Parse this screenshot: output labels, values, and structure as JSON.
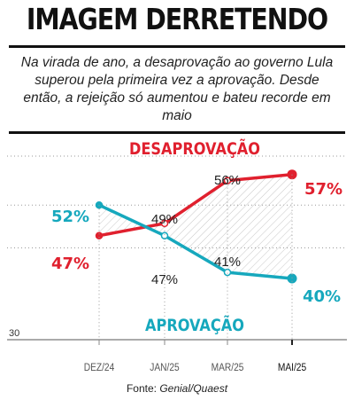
{
  "header": {
    "title": "IMAGEM DERRETENDO",
    "subtitle": "Na virada de ano, a desaprovação ao governo Lula superou pela primeira vez a aprovação. Desde então, a rejeição só aumentou e bateu recorde em maio"
  },
  "source": {
    "label": "Fonte:",
    "name": "Genial/Quaest"
  },
  "chart_data": {
    "type": "line",
    "categories": [
      "DEZ/24",
      "JAN/25",
      "MAR/25",
      "MAI/25"
    ],
    "series": [
      {
        "name": "DESAPROVAÇÃO",
        "values": [
          47,
          49,
          56,
          57
        ],
        "labels": [
          "47%",
          "49%",
          "56%",
          "57%"
        ],
        "color": "#e0202e"
      },
      {
        "name": "APROVAÇÃO",
        "values": [
          52,
          47,
          41,
          40
        ],
        "labels": [
          "52%",
          "47%",
          "41%",
          "40%"
        ],
        "color": "#16a8bd"
      }
    ],
    "y_axis": {
      "min": 30,
      "max": 60,
      "tick_label": "30"
    },
    "grid": "dotted",
    "shaded_area_between_series": true
  }
}
